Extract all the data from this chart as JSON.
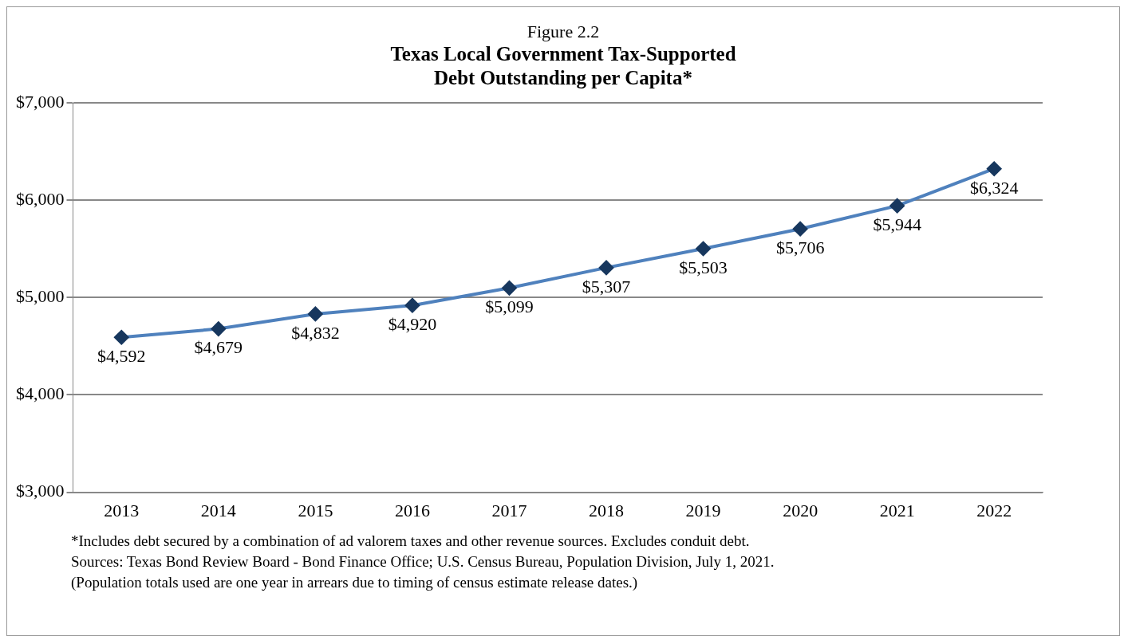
{
  "chart_data": {
    "type": "line",
    "subtitle": "Figure 2.2",
    "title": "Texas Local Government Tax-Supported Debt Outstanding per Capita*",
    "categories": [
      "2013",
      "2014",
      "2015",
      "2016",
      "2017",
      "2018",
      "2019",
      "2020",
      "2021",
      "2022"
    ],
    "series": [
      {
        "color": "#4f81bd",
        "values": [
          4592,
          4679,
          4832,
          4920,
          5099,
          5307,
          5503,
          5706,
          5944,
          6324
        ],
        "value_labels": [
          "$4,592",
          "$4,679",
          "$4,832",
          "$4,920",
          "$5,099",
          "$5,307",
          "$5,503",
          "$5,706",
          "$5,944",
          "$6,324"
        ]
      }
    ],
    "ylim": [
      3000,
      7000
    ],
    "yticks": [
      {
        "value": 3000,
        "label": "$3,000"
      },
      {
        "value": 4000,
        "label": "$4,000"
      },
      {
        "value": 5000,
        "label": "$5,000"
      },
      {
        "value": 6000,
        "label": "$6,000"
      },
      {
        "value": 7000,
        "label": "$7,000"
      }
    ],
    "grid": "y",
    "legend": false,
    "marker": "diamond",
    "line_style": "solid",
    "annotations": [
      "*Includes debt secured by a combination of ad valorem taxes and other revenue sources. Excludes conduit debt.",
      "Sources: Texas Bond Review Board - Bond Finance Office; U.S. Census Bureau, Population Division, July 1, 2021.",
      "(Population totals used are one year in arrears due to timing of census estimate release dates.)"
    ]
  }
}
